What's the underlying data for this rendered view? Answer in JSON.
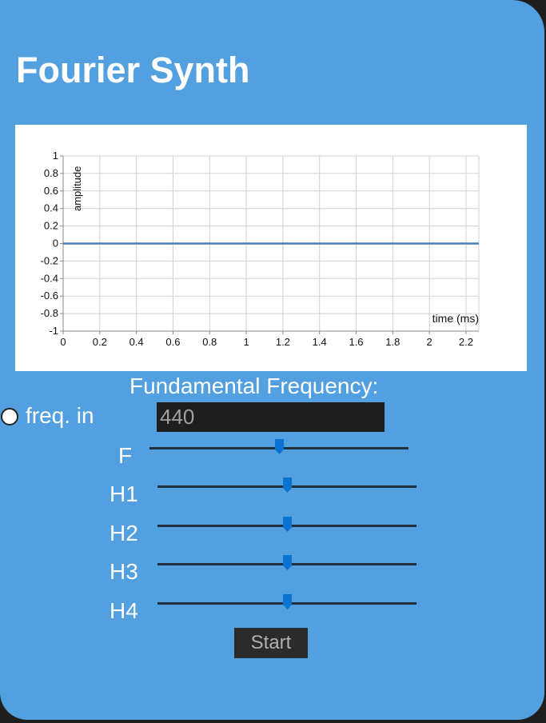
{
  "app": {
    "title": "Fourier Synth"
  },
  "chart_data": {
    "type": "line",
    "ylabel": "amplitude",
    "xlabel": "time (ms)",
    "xlim": [
      0,
      2.27
    ],
    "ylim": [
      -1,
      1
    ],
    "x_ticks": [
      "0",
      "0.2",
      "0.4",
      "0.6",
      "0.8",
      "1",
      "1.2",
      "1.4",
      "1.6",
      "1.8",
      "2",
      "2.2"
    ],
    "y_ticks": [
      "1",
      "0.8",
      "0.6",
      "0.4",
      "0.2",
      "0",
      "-0.2",
      "-0.4",
      "-0.6",
      "-0.8",
      "-1"
    ],
    "grid": true,
    "series": [
      {
        "x": [
          0,
          2.27
        ],
        "y": [
          0,
          0
        ],
        "color": "#4a7eb5"
      }
    ]
  },
  "controls": {
    "fundamental_label": "Fundamental Frequency:",
    "freq_radio_label": "freq. in",
    "freq_value": "440",
    "start_label": "Start"
  },
  "sliders": [
    {
      "label": "F",
      "value": 0.5
    },
    {
      "label": "H1",
      "value": 0.5
    },
    {
      "label": "H2",
      "value": 0.5
    },
    {
      "label": "H3",
      "value": 0.5
    },
    {
      "label": "H4",
      "value": 0.5
    }
  ],
  "colors": {
    "panel": "#52a0df",
    "slider_thumb": "#0a72d0",
    "line": "#4a7eb5"
  }
}
